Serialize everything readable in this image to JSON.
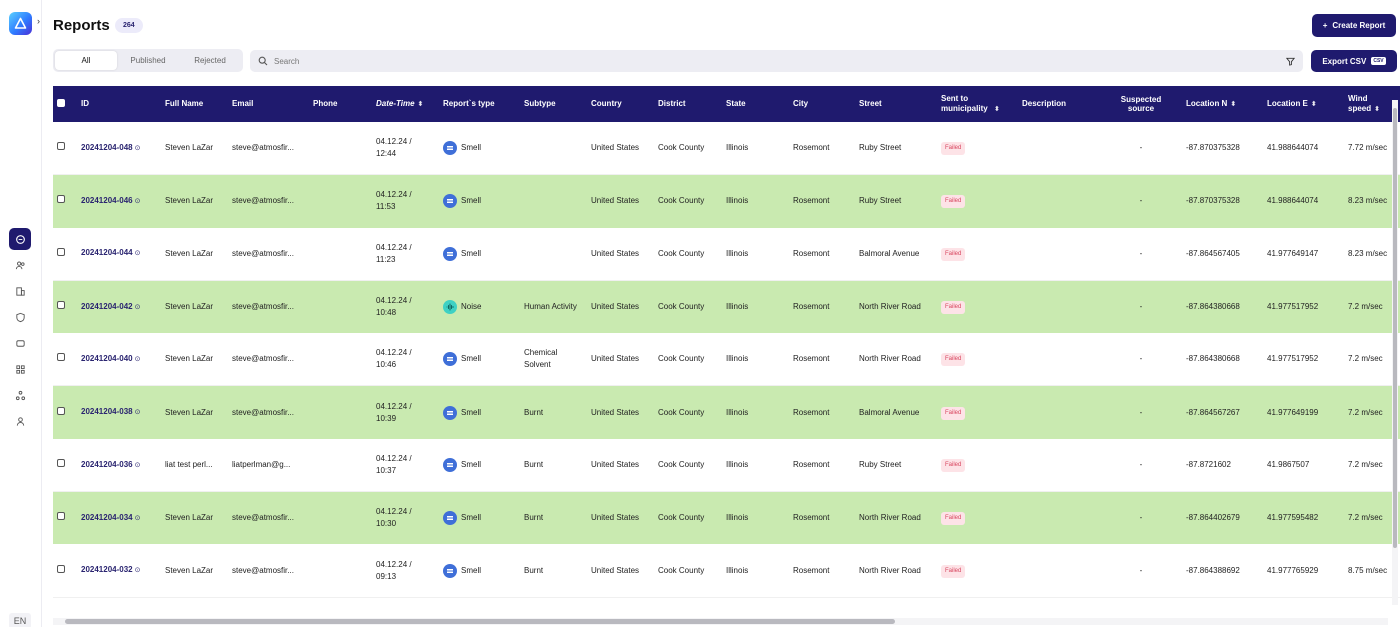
{
  "header": {
    "title": "Reports",
    "count": "264",
    "create_label": "Create Report",
    "export_label": "Export CSV",
    "export_tag": "CSV"
  },
  "tabs": [
    {
      "label": "All",
      "active": true
    },
    {
      "label": "Published",
      "active": false
    },
    {
      "label": "Rejected",
      "active": false
    }
  ],
  "search": {
    "placeholder": "Search",
    "value": ""
  },
  "sidebar": {
    "language": "EN",
    "icons": [
      "chat-icon",
      "users-icon",
      "buildings-icon",
      "shield-icon",
      "refresh-icon",
      "grid-icon",
      "network-icon",
      "profile-icon"
    ]
  },
  "columns": {
    "id": "ID",
    "full_name": "Full Name",
    "email": "Email",
    "phone": "Phone",
    "date_time": "Date-Time",
    "report_type": "Report`s type",
    "subtype": "Subtype",
    "country": "Country",
    "district": "District",
    "state": "State",
    "city": "City",
    "street": "Street",
    "sent_to_municipality": "Sent to municipality",
    "description": "Description",
    "suspected_source": "Suspected source",
    "location_n": "Location N",
    "location_e": "Location E",
    "wind_speed": "Wind speed"
  },
  "rows": [
    {
      "id": "20241204-048",
      "name": "Steven LaZar",
      "email": "steve@atmosfir...",
      "phone": "",
      "date": "04.12.24 /",
      "time": "12:44",
      "type": "Smell",
      "subtype": "",
      "country": "United States",
      "district": "Cook County",
      "state": "Illinois",
      "city": "Rosemont",
      "street": "Ruby Street",
      "status": "Failed",
      "description": "",
      "source": "-",
      "loc_n": "-87.870375328",
      "loc_e": "41.988644074",
      "wind": "7.72 m/sec"
    },
    {
      "id": "20241204-046",
      "name": "Steven LaZar",
      "email": "steve@atmosfir...",
      "phone": "",
      "date": "04.12.24 /",
      "time": "11:53",
      "type": "Smell",
      "subtype": "",
      "country": "United States",
      "district": "Cook County",
      "state": "Illinois",
      "city": "Rosemont",
      "street": "Ruby Street",
      "status": "Failed",
      "description": "",
      "source": "-",
      "loc_n": "-87.870375328",
      "loc_e": "41.988644074",
      "wind": "8.23 m/sec"
    },
    {
      "id": "20241204-044",
      "name": "Steven LaZar",
      "email": "steve@atmosfir...",
      "phone": "",
      "date": "04.12.24 /",
      "time": "11:23",
      "type": "Smell",
      "subtype": "",
      "country": "United States",
      "district": "Cook County",
      "state": "Illinois",
      "city": "Rosemont",
      "street": "Balmoral Avenue",
      "status": "Failed",
      "description": "",
      "source": "-",
      "loc_n": "-87.864567405",
      "loc_e": "41.977649147",
      "wind": "8.23 m/sec"
    },
    {
      "id": "20241204-042",
      "name": "Steven LaZar",
      "email": "steve@atmosfir...",
      "phone": "",
      "date": "04.12.24 /",
      "time": "10:48",
      "type": "Noise",
      "subtype": "Human Activity",
      "country": "United States",
      "district": "Cook County",
      "state": "Illinois",
      "city": "Rosemont",
      "street": "North River Road",
      "status": "Failed",
      "description": "",
      "source": "-",
      "loc_n": "-87.864380668",
      "loc_e": "41.977517952",
      "wind": "7.2 m/sec"
    },
    {
      "id": "20241204-040",
      "name": "Steven LaZar",
      "email": "steve@atmosfir...",
      "phone": "",
      "date": "04.12.24 /",
      "time": "10:46",
      "type": "Smell",
      "subtype": "Chemical Solvent",
      "country": "United States",
      "district": "Cook County",
      "state": "Illinois",
      "city": "Rosemont",
      "street": "North River Road",
      "status": "Failed",
      "description": "",
      "source": "-",
      "loc_n": "-87.864380668",
      "loc_e": "41.977517952",
      "wind": "7.2 m/sec"
    },
    {
      "id": "20241204-038",
      "name": "Steven LaZar",
      "email": "steve@atmosfir...",
      "phone": "",
      "date": "04.12.24 /",
      "time": "10:39",
      "type": "Smell",
      "subtype": "Burnt",
      "country": "United States",
      "district": "Cook County",
      "state": "Illinois",
      "city": "Rosemont",
      "street": "Balmoral Avenue",
      "status": "Failed",
      "description": "",
      "source": "-",
      "loc_n": "-87.864567267",
      "loc_e": "41.977649199",
      "wind": "7.2 m/sec"
    },
    {
      "id": "20241204-036",
      "name": "liat test perl...",
      "email": "liatperlman@g...",
      "phone": "",
      "date": "04.12.24 /",
      "time": "10:37",
      "type": "Smell",
      "subtype": "Burnt",
      "country": "United States",
      "district": "Cook County",
      "state": "Illinois",
      "city": "Rosemont",
      "street": "Ruby Street",
      "status": "Failed",
      "description": "",
      "source": "-",
      "loc_n": "-87.8721602",
      "loc_e": "41.9867507",
      "wind": "7.2 m/sec"
    },
    {
      "id": "20241204-034",
      "name": "Steven LaZar",
      "email": "steve@atmosfir...",
      "phone": "",
      "date": "04.12.24 /",
      "time": "10:30",
      "type": "Smell",
      "subtype": "Burnt",
      "country": "United States",
      "district": "Cook County",
      "state": "Illinois",
      "city": "Rosemont",
      "street": "North River Road",
      "status": "Failed",
      "description": "",
      "source": "-",
      "loc_n": "-87.864402679",
      "loc_e": "41.977595482",
      "wind": "7.2 m/sec"
    },
    {
      "id": "20241204-032",
      "name": "Steven LaZar",
      "email": "steve@atmosfir...",
      "phone": "",
      "date": "04.12.24 /",
      "time": "09:13",
      "type": "Smell",
      "subtype": "Burnt",
      "country": "United States",
      "district": "Cook County",
      "state": "Illinois",
      "city": "Rosemont",
      "street": "North River Road",
      "status": "Failed",
      "description": "",
      "source": "-",
      "loc_n": "-87.864388692",
      "loc_e": "41.977765929",
      "wind": "8.75 m/sec"
    }
  ],
  "colors": {
    "primary": "#1f1a6e",
    "row_highlight": "#c9eab0",
    "failed_bg": "#fde3e7",
    "failed_text": "#d8455f",
    "smell_icon": "#3f6fd8",
    "noise_icon": "#3ed1c4"
  }
}
